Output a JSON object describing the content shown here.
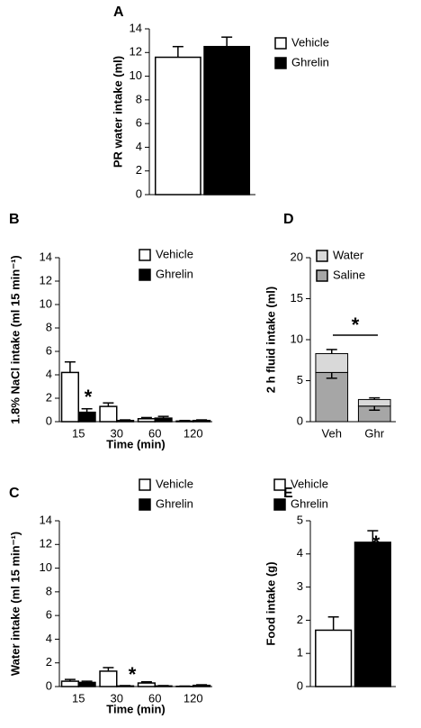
{
  "chart_data": [
    {
      "type": "bar",
      "panel": "A",
      "ylabel": "PR water intake (ml)",
      "categories": [
        null
      ],
      "series": [
        {
          "name": "Vehicle",
          "color": "#ffffff",
          "values": [
            11.6
          ],
          "errors": [
            0.9
          ]
        },
        {
          "name": "Ghrelin",
          "color": "#000000",
          "values": [
            12.5
          ],
          "errors": [
            0.8
          ]
        }
      ],
      "ylim": [
        0,
        14
      ],
      "yticks": [
        0,
        2,
        4,
        6,
        8,
        10,
        12,
        14
      ]
    },
    {
      "type": "bar",
      "panel": "B",
      "ylabel": "1.8% NaCl intake (ml 15 min⁻¹)",
      "xlabel": "Time (min)",
      "categories": [
        "15",
        "30",
        "60",
        "120"
      ],
      "series": [
        {
          "name": "Vehicle",
          "color": "#ffffff",
          "values": [
            4.2,
            1.3,
            0.25,
            0.05
          ],
          "errors": [
            0.9,
            0.3,
            0.1,
            0.05
          ]
        },
        {
          "name": "Ghrelin",
          "color": "#000000",
          "values": [
            0.8,
            0.1,
            0.3,
            0.1
          ],
          "errors": [
            0.3,
            0.05,
            0.15,
            0.05
          ]
        }
      ],
      "ylim": [
        0,
        14
      ],
      "yticks": [
        0,
        2,
        4,
        6,
        8,
        10,
        12,
        14
      ],
      "annotations": [
        "*"
      ]
    },
    {
      "type": "bar",
      "panel": "C",
      "ylabel": "Water intake (ml 15 min⁻¹)",
      "xlabel": "Time (min)",
      "categories": [
        "15",
        "30",
        "60",
        "120"
      ],
      "series": [
        {
          "name": "Vehicle",
          "color": "#ffffff",
          "values": [
            0.45,
            1.3,
            0.3,
            0.02
          ],
          "errors": [
            0.15,
            0.3,
            0.1,
            0.02
          ]
        },
        {
          "name": "Ghrelin",
          "color": "#000000",
          "values": [
            0.35,
            0.05,
            0.05,
            0.1
          ],
          "errors": [
            0.1,
            0.03,
            0.03,
            0.05
          ]
        }
      ],
      "ylim": [
        0,
        14
      ],
      "yticks": [
        0,
        2,
        4,
        6,
        8,
        10,
        12,
        14
      ],
      "annotations": [
        "*"
      ]
    },
    {
      "type": "stacked_bar",
      "panel": "D",
      "ylabel": "2 h fluid intake (ml)",
      "categories": [
        "Veh",
        "Ghr"
      ],
      "series": [
        {
          "name": "Water",
          "color": "#d9d9d9",
          "values": [
            2.3,
            0.8
          ],
          "errors": [
            0.5,
            0.2
          ]
        },
        {
          "name": "Saline",
          "color": "#a6a6a6",
          "values": [
            6.0,
            1.9
          ],
          "errors": [
            0.7,
            0.5
          ]
        }
      ],
      "ylim": [
        0,
        20
      ],
      "yticks": [
        0,
        5,
        10,
        15,
        20
      ],
      "annotations": [
        "*"
      ]
    },
    {
      "type": "bar",
      "panel": "E",
      "ylabel": "Food intake (g)",
      "categories": [
        null
      ],
      "series": [
        {
          "name": "Vehicle",
          "color": "#ffffff",
          "values": [
            1.7
          ],
          "errors": [
            0.4
          ]
        },
        {
          "name": "Ghrelin",
          "color": "#000000",
          "values": [
            4.35
          ],
          "errors": [
            0.35
          ]
        }
      ],
      "ylim": [
        0,
        5
      ],
      "yticks": [
        0,
        1,
        2,
        3,
        4,
        5
      ],
      "annotations": [
        "*"
      ]
    }
  ]
}
